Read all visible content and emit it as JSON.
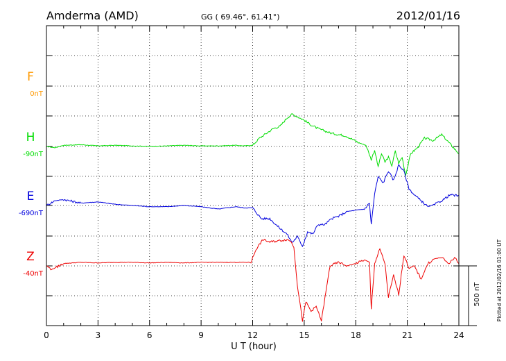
{
  "header": {
    "station": "Amderma (AMD)",
    "coords": "GG ( 69.46°,  61.41°)",
    "date": "2012/01/16"
  },
  "plotted_note": "Plotted at 2012/02/16 01:00 UT",
  "scale_label": "500 nT",
  "colors": {
    "F": "#ff9900",
    "H": "#00dd00",
    "E": "#0000dd",
    "Z": "#ee0000",
    "grid": "#000000"
  },
  "chart_data": {
    "type": "line",
    "title": "Amderma (AMD)",
    "subtitle": "GG ( 69.46°,  61.41°)",
    "date": "2012/01/16",
    "xlabel": "U T (hour)",
    "xlim": [
      0,
      24
    ],
    "xticks": [
      "0",
      "3",
      "6",
      "9",
      "12",
      "15",
      "18",
      "21",
      "24"
    ],
    "grid": true,
    "scale_bar_nT": 500,
    "channels": [
      {
        "name": "F",
        "baseline_label": "0nT",
        "has_data": false
      },
      {
        "name": "H",
        "baseline_label": "-90nT",
        "has_data": true
      },
      {
        "name": "E",
        "baseline_label": "-690nT",
        "has_data": true
      },
      {
        "name": "Z",
        "baseline_label": "-40nT",
        "has_data": true
      }
    ],
    "series": [
      {
        "name": "H",
        "x": [
          0,
          0.5,
          1,
          2,
          3,
          4,
          5,
          6,
          7,
          8,
          9,
          10,
          11,
          11.5,
          12,
          12.4,
          12.8,
          13.2,
          13.6,
          14,
          14.3,
          14.6,
          15,
          15.4,
          15.8,
          16.2,
          16.6,
          17,
          17.4,
          17.8,
          18.2,
          18.6,
          18.9,
          19.1,
          19.3,
          19.5,
          19.7,
          19.9,
          20.1,
          20.3,
          20.5,
          20.7,
          20.9,
          21.2,
          21.6,
          22,
          22.5,
          23,
          23.5,
          24
        ],
        "values": [
          -90,
          -100,
          -80,
          -75,
          -85,
          -80,
          -85,
          -90,
          -85,
          -80,
          -85,
          -85,
          -80,
          -85,
          -80,
          -20,
          20,
          60,
          80,
          150,
          180,
          160,
          130,
          90,
          60,
          40,
          20,
          10,
          0,
          -30,
          -60,
          -80,
          -200,
          -120,
          -260,
          -150,
          -220,
          -180,
          -250,
          -130,
          -230,
          -180,
          -330,
          -150,
          -100,
          -20,
          -40,
          10,
          -70,
          -150
        ]
      },
      {
        "name": "E",
        "x": [
          0,
          0.5,
          1,
          2,
          3,
          4,
          5,
          6,
          7,
          8,
          9,
          10,
          11,
          11.5,
          12,
          12.5,
          13,
          13.5,
          14,
          14.3,
          14.6,
          14.9,
          15.2,
          15.5,
          15.8,
          16.2,
          16.6,
          17,
          17.5,
          18,
          18.5,
          18.8,
          18.9,
          19.1,
          19.3,
          19.6,
          19.9,
          20.2,
          20.5,
          20.8,
          21.1,
          21.4,
          21.8,
          22.2,
          22.6,
          23,
          23.5,
          24
        ],
        "values": [
          -690,
          -650,
          -640,
          -670,
          -660,
          -680,
          -690,
          -700,
          -700,
          -690,
          -700,
          -720,
          -700,
          -710,
          -710,
          -800,
          -800,
          -870,
          -930,
          -1000,
          -950,
          -1030,
          -910,
          -930,
          -850,
          -850,
          -800,
          -780,
          -740,
          -730,
          -720,
          -670,
          -850,
          -590,
          -450,
          -500,
          -400,
          -480,
          -350,
          -400,
          -550,
          -600,
          -650,
          -700,
          -680,
          -650,
          -600,
          -610
        ]
      },
      {
        "name": "Z",
        "x": [
          0,
          0.3,
          0.6,
          1,
          2,
          3,
          4,
          5,
          6,
          7,
          8,
          9,
          10,
          11,
          11.5,
          11.9,
          12.2,
          12.6,
          13,
          13.5,
          14,
          14.2,
          14.4,
          14.6,
          14.9,
          15.1,
          15.4,
          15.7,
          16,
          16.5,
          17,
          17.5,
          18,
          18.5,
          18.8,
          18.9,
          19.1,
          19.4,
          19.7,
          19.9,
          20.2,
          20.5,
          20.8,
          21.1,
          21.4,
          21.8,
          22.2,
          22.6,
          23,
          23.4,
          23.8,
          24
        ],
        "values": [
          -40,
          -70,
          -50,
          -20,
          -10,
          -15,
          -10,
          -10,
          -15,
          -10,
          -15,
          -10,
          -10,
          -10,
          -10,
          -10,
          100,
          180,
          160,
          170,
          180,
          170,
          120,
          -200,
          -500,
          -340,
          -420,
          -380,
          -500,
          -40,
          -10,
          -40,
          -20,
          10,
          -10,
          -400,
          -20,
          100,
          -20,
          -300,
          -120,
          -280,
          50,
          -60,
          -40,
          -150,
          -20,
          20,
          30,
          -20,
          30,
          -20
        ]
      }
    ]
  }
}
